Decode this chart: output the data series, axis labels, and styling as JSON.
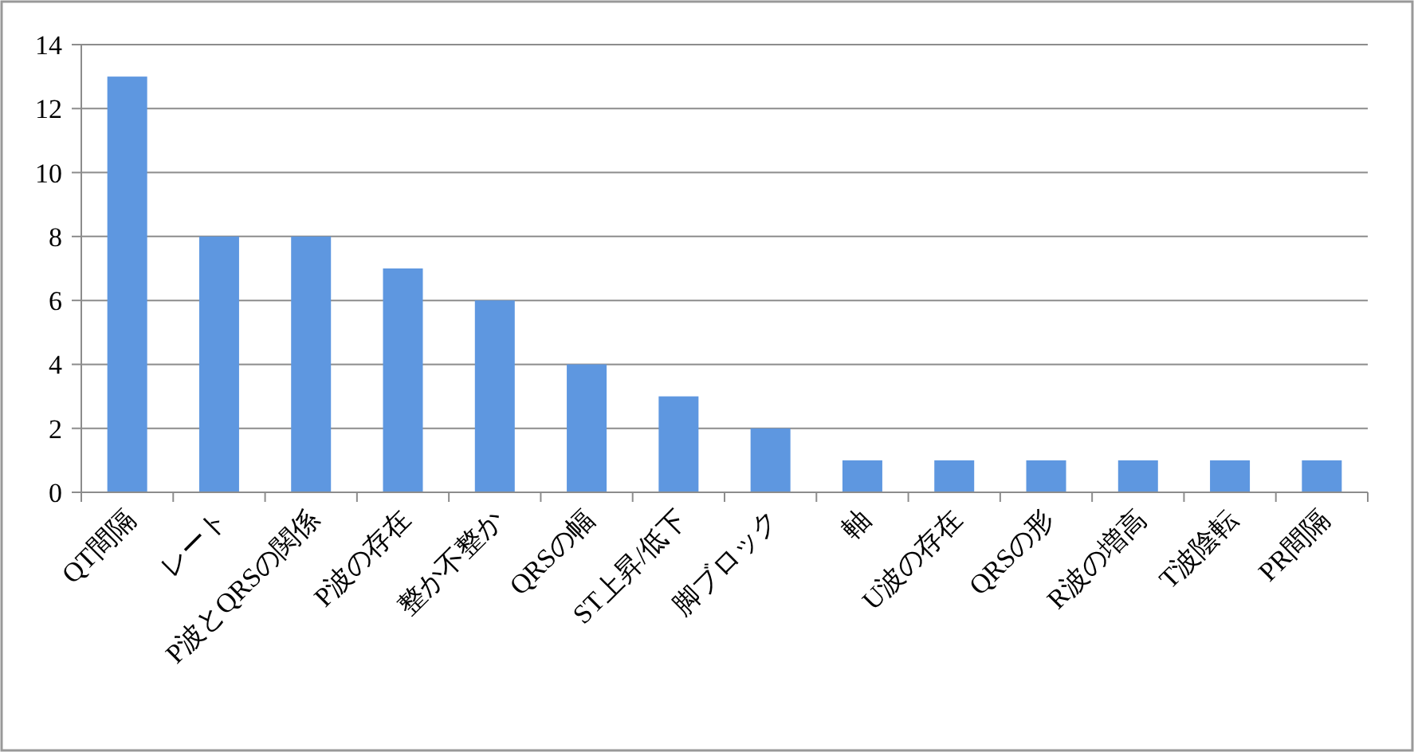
{
  "chart_data": {
    "type": "bar",
    "categories": [
      "QT間隔",
      "レート",
      "P波とQRSの関係",
      "P波の存在",
      "整か不整か",
      "QRSの幅",
      "ST上昇/低下",
      "脚ブロック",
      "軸",
      "U波の存在",
      "QRSの形",
      "R波の増高",
      "T波陰転",
      "PR間隔"
    ],
    "values": [
      13,
      8,
      8,
      7,
      6,
      4,
      3,
      2,
      1,
      1,
      1,
      1,
      1,
      1
    ],
    "color": "#5e97e0",
    "ylim": [
      0,
      14
    ],
    "yticks": [
      0,
      2,
      4,
      6,
      8,
      10,
      12,
      14
    ],
    "grid": "y"
  }
}
